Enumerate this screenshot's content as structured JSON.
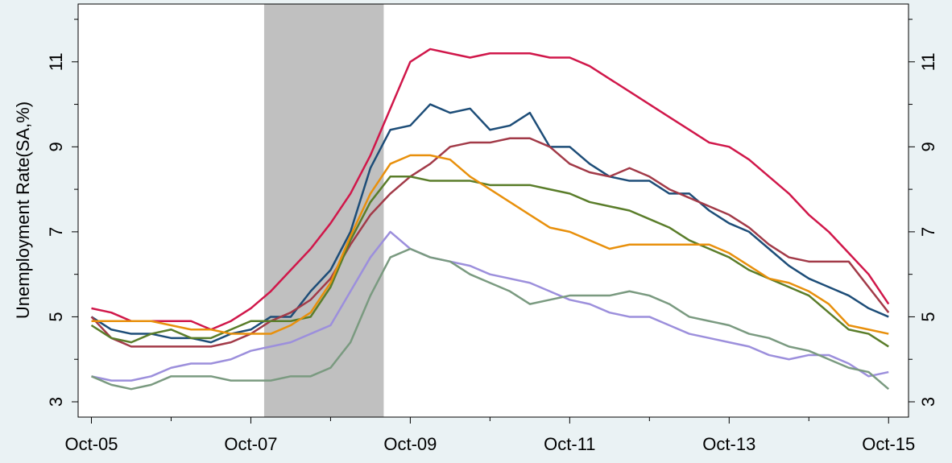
{
  "chart_data": {
    "type": "line",
    "y_label": "Unemployment Rate(SA,%)",
    "x": [
      "2005-10",
      "2006-01",
      "2006-04",
      "2006-07",
      "2006-10",
      "2007-01",
      "2007-04",
      "2007-07",
      "2007-10",
      "2008-01",
      "2008-04",
      "2008-07",
      "2008-10",
      "2009-01",
      "2009-04",
      "2009-07",
      "2009-10",
      "2010-01",
      "2010-04",
      "2010-07",
      "2010-10",
      "2011-01",
      "2011-04",
      "2011-07",
      "2011-10",
      "2012-01",
      "2012-04",
      "2012-07",
      "2012-10",
      "2013-01",
      "2013-04",
      "2013-07",
      "2013-10",
      "2014-01",
      "2014-04",
      "2014-07",
      "2014-10",
      "2015-01",
      "2015-04",
      "2015-07",
      "2015-10"
    ],
    "series": [
      {
        "color": "#d0174a",
        "values": [
          5.2,
          5.1,
          4.9,
          4.9,
          4.9,
          4.9,
          4.7,
          4.9,
          5.2,
          5.6,
          6.1,
          6.6,
          7.2,
          7.9,
          8.8,
          9.9,
          11.0,
          11.3,
          11.2,
          11.1,
          11.2,
          11.2,
          11.2,
          11.1,
          11.1,
          10.9,
          10.6,
          10.3,
          10.0,
          9.7,
          9.4,
          9.1,
          9.0,
          8.7,
          8.3,
          7.9,
          7.4,
          7.0,
          6.5,
          6.0,
          5.3
        ]
      },
      {
        "color": "#1d4d78",
        "values": [
          5.0,
          4.7,
          4.6,
          4.6,
          4.5,
          4.5,
          4.4,
          4.6,
          4.7,
          5.0,
          5.0,
          5.6,
          6.1,
          7.0,
          8.5,
          9.4,
          9.5,
          10.0,
          9.8,
          9.9,
          9.4,
          9.5,
          9.8,
          9.0,
          9.0,
          8.6,
          8.3,
          8.2,
          8.2,
          7.9,
          7.9,
          7.5,
          7.2,
          7.0,
          6.6,
          6.2,
          5.9,
          5.7,
          5.5,
          5.2,
          5.0
        ]
      },
      {
        "color": "#a23a48",
        "values": [
          5.0,
          4.5,
          4.3,
          4.3,
          4.3,
          4.3,
          4.3,
          4.4,
          4.6,
          4.9,
          5.1,
          5.4,
          5.9,
          6.7,
          7.4,
          7.9,
          8.3,
          8.6,
          9.0,
          9.1,
          9.1,
          9.2,
          9.2,
          9.0,
          8.6,
          8.4,
          8.3,
          8.5,
          8.3,
          8.0,
          7.8,
          7.6,
          7.4,
          7.1,
          6.7,
          6.4,
          6.3,
          6.3,
          6.3,
          5.7,
          5.1
        ]
      },
      {
        "color": "#5a7d2a",
        "values": [
          4.8,
          4.5,
          4.4,
          4.6,
          4.7,
          4.5,
          4.5,
          4.7,
          4.9,
          4.9,
          4.9,
          5.0,
          5.7,
          6.8,
          7.7,
          8.3,
          8.3,
          8.2,
          8.2,
          8.2,
          8.1,
          8.1,
          8.1,
          8.0,
          7.9,
          7.7,
          7.6,
          7.5,
          7.3,
          7.1,
          6.8,
          6.6,
          6.4,
          6.1,
          5.9,
          5.7,
          5.5,
          5.1,
          4.7,
          4.6,
          4.3
        ]
      },
      {
        "color": "#e8900c",
        "values": [
          4.9,
          4.9,
          4.9,
          4.9,
          4.8,
          4.7,
          4.7,
          4.6,
          4.6,
          4.6,
          4.8,
          5.1,
          5.8,
          6.9,
          7.9,
          8.6,
          8.8,
          8.8,
          8.7,
          8.3,
          8.0,
          7.7,
          7.4,
          7.1,
          7.0,
          6.8,
          6.6,
          6.7,
          6.7,
          6.7,
          6.7,
          6.7,
          6.5,
          6.2,
          5.9,
          5.8,
          5.6,
          5.3,
          4.8,
          4.7,
          4.6
        ]
      },
      {
        "color": "#9c8fdc",
        "values": [
          3.6,
          3.5,
          3.5,
          3.6,
          3.8,
          3.9,
          3.9,
          4.0,
          4.2,
          4.3,
          4.4,
          4.6,
          4.8,
          5.6,
          6.4,
          7.0,
          6.6,
          6.4,
          6.3,
          6.2,
          6.0,
          5.9,
          5.8,
          5.6,
          5.4,
          5.3,
          5.1,
          5.0,
          5.0,
          4.8,
          4.6,
          4.5,
          4.4,
          4.3,
          4.1,
          4.0,
          4.1,
          4.1,
          3.9,
          3.6,
          3.7
        ]
      },
      {
        "color": "#7a9a80",
        "values": [
          3.6,
          3.4,
          3.3,
          3.4,
          3.6,
          3.6,
          3.6,
          3.5,
          3.5,
          3.5,
          3.6,
          3.6,
          3.8,
          4.4,
          5.5,
          6.4,
          6.6,
          6.4,
          6.3,
          6.0,
          5.8,
          5.6,
          5.3,
          5.4,
          5.5,
          5.5,
          5.5,
          5.6,
          5.5,
          5.3,
          5.0,
          4.9,
          4.8,
          4.6,
          4.5,
          4.3,
          4.2,
          4.0,
          3.8,
          3.7,
          3.3
        ]
      }
    ],
    "shaded_ranges": [
      [
        "2007-12",
        "2009-06"
      ]
    ],
    "shade_color": "#c0c0c0",
    "xlim": [
      "2005-08",
      "2016-01"
    ],
    "xticks": [
      {
        "value": "2005-10",
        "label": "Oct-05"
      },
      {
        "value": "2007-10",
        "label": "Oct-07"
      },
      {
        "value": "2009-10",
        "label": "Oct-09"
      },
      {
        "value": "2011-10",
        "label": "Oct-11"
      },
      {
        "value": "2013-10",
        "label": "Oct-13"
      },
      {
        "value": "2015-10",
        "label": "Oct-15"
      }
    ],
    "xminorticks": [
      "2006-10",
      "2008-10",
      "2010-10",
      "2012-10",
      "2014-10"
    ],
    "ylim": [
      2.64,
      12.36
    ],
    "yticks": [
      3,
      5,
      7,
      9,
      11
    ],
    "yminorticks": [
      4,
      6,
      8,
      10,
      12
    ],
    "right_axis_mirror": true,
    "grid": false
  }
}
